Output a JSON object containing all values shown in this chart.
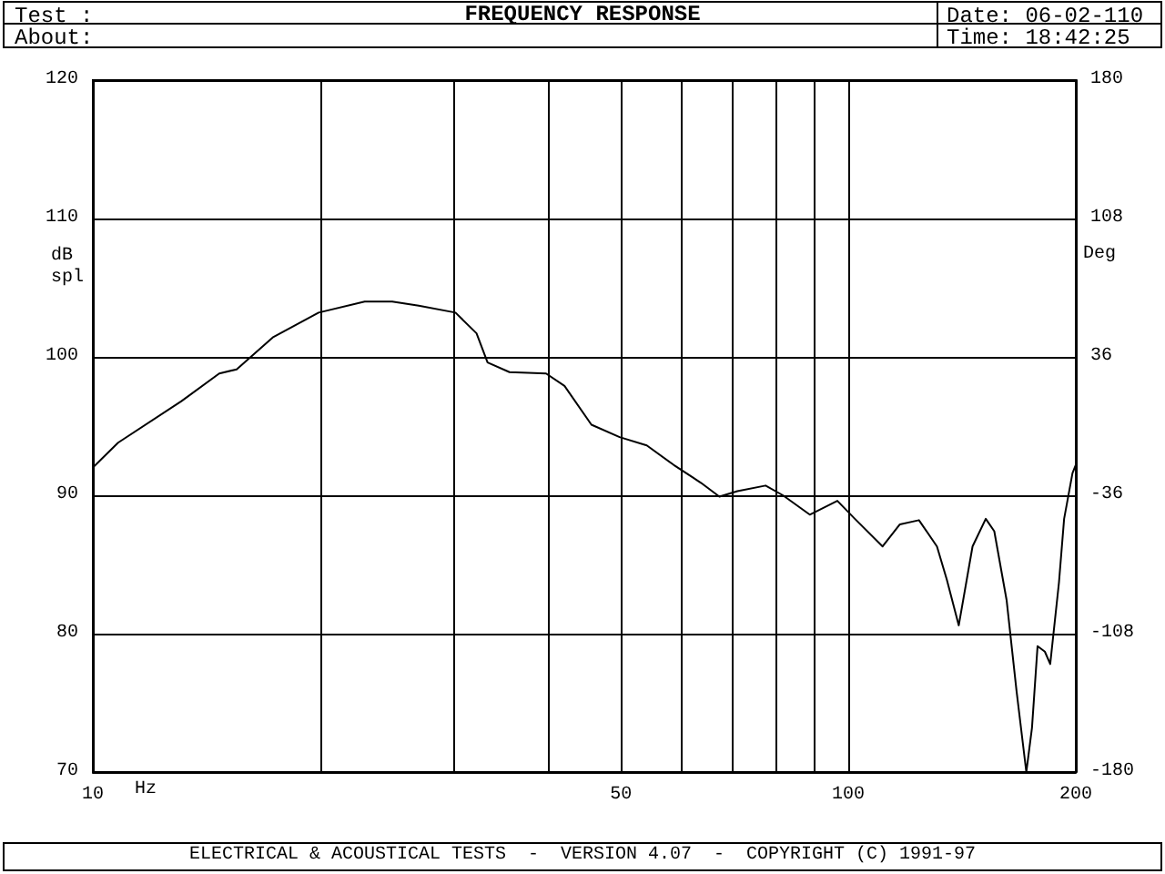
{
  "chart_data": {
    "type": "line",
    "title": "FREQUENCY RESPONSE",
    "xlabel": "Hz",
    "ylabel": "dB\nspl",
    "y2label": "Deg",
    "annotations": [
      "Test :",
      "About:",
      "Date: 06-02-110",
      "Time: 18:42:25",
      "ELECTRICAL & ACOUSTICAL TESTS  -  VERSION 4.07  -  COPYRIGHT (C) 1991-97"
    ],
    "log": "x",
    "grid": true,
    "marker": "none",
    "line_style": "solid",
    "xlim": [
      10,
      200
    ],
    "xticks": [
      10,
      {
        "value": 20,
        "label": null
      },
      {
        "value": 30,
        "label": null
      },
      {
        "value": 40,
        "label": null
      },
      50,
      {
        "value": 60,
        "label": null
      },
      {
        "value": 70,
        "label": null
      },
      {
        "value": 80,
        "label": null
      },
      {
        "value": 90,
        "label": null
      },
      100,
      200
    ],
    "ylim": [
      70,
      120
    ],
    "yticks": [
      70,
      80,
      90,
      100,
      110,
      120
    ],
    "y2lim": [
      -180,
      180
    ],
    "y2ticks": [
      -180,
      -108,
      -36,
      36,
      108,
      180
    ],
    "series": [
      {
        "color": "#000000",
        "x": [
          10,
          10.8,
          13.1,
          14.7,
          15.5,
          17.3,
          19.9,
          22.9,
          24.9,
          27,
          30.2,
          32.2,
          33.3,
          35.6,
          39.8,
          42.1,
          45.7,
          49.8,
          54.1,
          58.7,
          63.8,
          67.5,
          71.3,
          77.7,
          81.9,
          88.9,
          96.7,
          102,
          111,
          117,
          124,
          131,
          135,
          140,
          146,
          152,
          156,
          162,
          167,
          172,
          175,
          178,
          182,
          185,
          190,
          193,
          198,
          200
        ],
        "values": [
          92,
          93.8,
          96.8,
          98.8,
          99.1,
          101.4,
          103.2,
          104,
          104,
          103.7,
          103.2,
          101.7,
          99.6,
          98.9,
          98.8,
          97.9,
          95.1,
          94.2,
          93.6,
          92.2,
          90.9,
          89.9,
          90.3,
          90.7,
          90,
          88.6,
          89.6,
          88.3,
          86.3,
          87.9,
          88.2,
          86.3,
          83.9,
          80.6,
          86.3,
          88.3,
          87.4,
          82.4,
          75.8,
          70,
          73.2,
          79.1,
          78.7,
          77.8,
          83.7,
          88.3,
          91.6,
          92.2
        ]
      }
    ]
  }
}
